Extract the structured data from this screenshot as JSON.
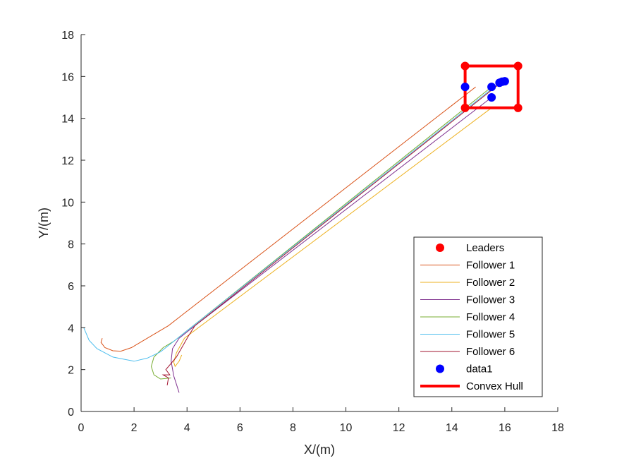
{
  "chart_data": {
    "type": "line",
    "xlabel": "X/(m)",
    "ylabel": "Y/(m)",
    "xlim": [
      0,
      18
    ],
    "ylim": [
      0,
      18
    ],
    "xticks": [
      "0",
      "2",
      "4",
      "6",
      "8",
      "10",
      "12",
      "14",
      "16",
      "18"
    ],
    "yticks": [
      "0",
      "2",
      "4",
      "6",
      "8",
      "10",
      "12",
      "14",
      "16",
      "18"
    ],
    "grid": false,
    "legend_position": "bottom-right",
    "legend": [
      {
        "label": "Leaders",
        "marker": "dot",
        "color": "#ff0000"
      },
      {
        "label": "Follower 1",
        "marker": "line",
        "color": "#d95319"
      },
      {
        "label": "Follower 2",
        "marker": "line",
        "color": "#edb120"
      },
      {
        "label": "Follower 3",
        "marker": "line",
        "color": "#7e2f8e"
      },
      {
        "label": "Follower 4",
        "marker": "line",
        "color": "#77ac30"
      },
      {
        "label": "Follower 5",
        "marker": "line",
        "color": "#4dbeee"
      },
      {
        "label": "Follower 6",
        "marker": "line",
        "color": "#a2142f"
      },
      {
        "label": "data1",
        "marker": "dot",
        "color": "#0000ff"
      },
      {
        "label": "Convex Hull",
        "marker": "thickline",
        "color": "#ff0000"
      }
    ],
    "leaders": {
      "name": "Leaders",
      "color": "#ff0000",
      "points": [
        [
          14.5,
          16.5
        ],
        [
          16.5,
          16.5
        ],
        [
          16.5,
          14.5
        ],
        [
          14.5,
          14.5
        ]
      ]
    },
    "convex_hull": {
      "name": "Convex Hull",
      "color": "#ff0000",
      "points": [
        [
          14.5,
          14.5
        ],
        [
          14.5,
          16.5
        ],
        [
          16.5,
          16.5
        ],
        [
          16.5,
          14.5
        ],
        [
          14.5,
          14.5
        ]
      ]
    },
    "data1": {
      "name": "data1",
      "color": "#0000ff",
      "points": [
        [
          14.5,
          15.5
        ],
        [
          15.5,
          15.5
        ],
        [
          15.5,
          15.0
        ],
        [
          15.8,
          15.7
        ],
        [
          15.9,
          15.75
        ],
        [
          16.0,
          15.77
        ]
      ]
    },
    "series": [
      {
        "name": "Follower 1",
        "color": "#d95319",
        "x": [
          0.8,
          0.75,
          0.9,
          1.2,
          1.5,
          1.9,
          2.5,
          3.3,
          14.9
        ],
        "y": [
          3.5,
          3.3,
          3.05,
          2.9,
          2.88,
          3.05,
          3.5,
          4.1,
          15.5
        ]
      },
      {
        "name": "Follower 2",
        "color": "#edb120",
        "x": [
          3.8,
          3.7,
          3.55,
          3.5,
          3.6,
          3.9,
          15.5
        ],
        "y": [
          2.7,
          2.4,
          2.15,
          2.35,
          2.8,
          3.5,
          14.5
        ]
      },
      {
        "name": "Follower 3",
        "color": "#7e2f8e",
        "x": [
          3.7,
          3.6,
          3.5,
          3.4,
          3.45,
          3.7,
          4.2,
          15.5
        ],
        "y": [
          0.9,
          1.3,
          1.7,
          2.4,
          3.0,
          3.5,
          4.0,
          15.0
        ]
      },
      {
        "name": "Follower 4",
        "color": "#77ac30",
        "x": [
          3.4,
          3.0,
          2.75,
          2.65,
          2.75,
          3.1,
          3.5,
          15.5
        ],
        "y": [
          1.6,
          1.55,
          1.75,
          2.15,
          2.6,
          3.05,
          3.35,
          15.5
        ]
      },
      {
        "name": "Follower 5",
        "color": "#4dbeee",
        "x": [
          0.1,
          0.3,
          0.6,
          1.2,
          2.0,
          2.5,
          3.0,
          15.8
        ],
        "y": [
          4.0,
          3.4,
          3.0,
          2.6,
          2.4,
          2.55,
          2.85,
          15.7
        ]
      },
      {
        "name": "Follower 6",
        "color": "#a2142f",
        "x": [
          3.25,
          3.3,
          3.1,
          3.35,
          3.2,
          3.6,
          4.05,
          4.3,
          15.9
        ],
        "y": [
          1.25,
          1.6,
          1.75,
          1.75,
          2.0,
          2.6,
          3.6,
          4.1,
          15.75
        ]
      }
    ]
  }
}
